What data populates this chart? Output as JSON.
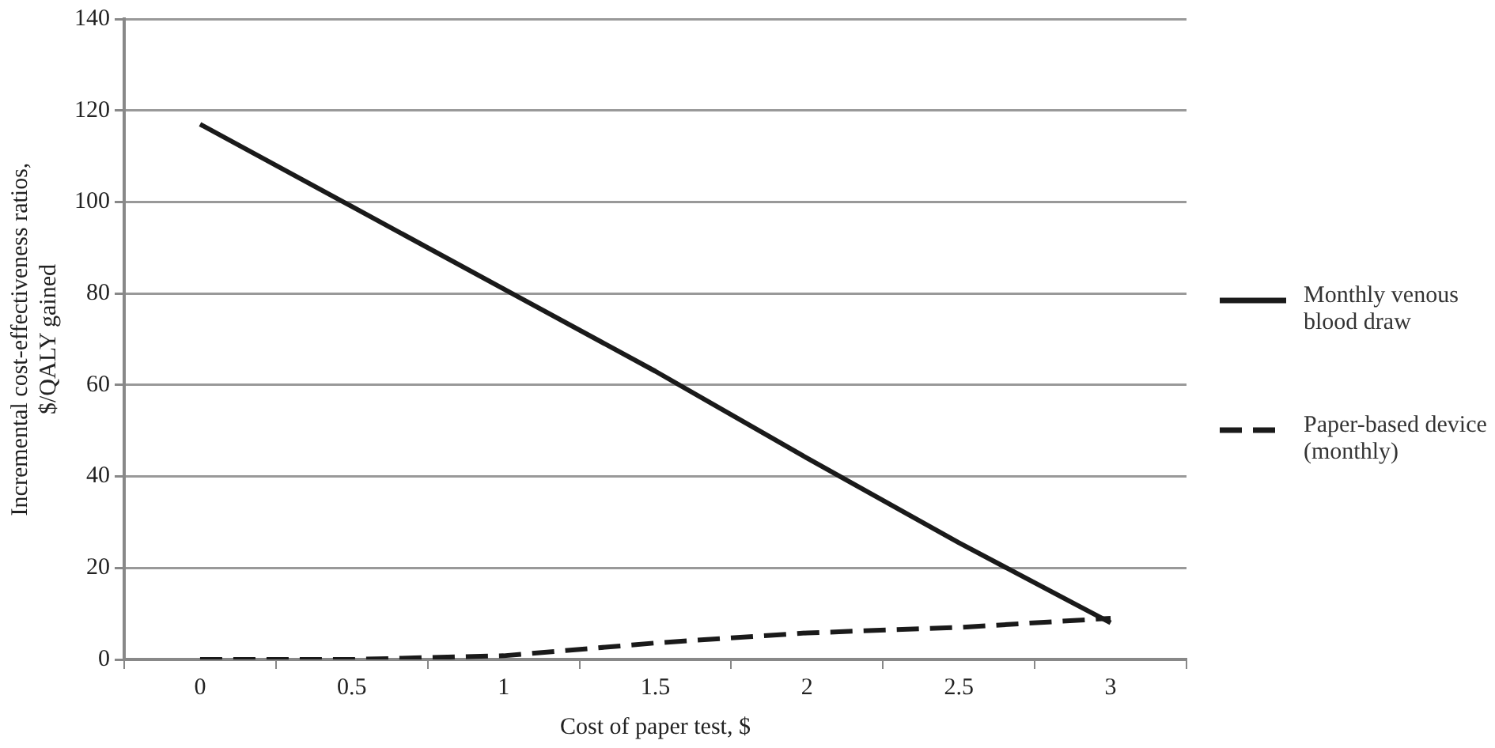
{
  "chart_data": {
    "type": "line",
    "xlabel": "Cost of paper test, $",
    "ylabel": "Incremental cost-effectiveness ratios,\n$/QALY gained",
    "categories": [
      "0",
      "0.5",
      "1",
      "1.5",
      "2",
      "2.5",
      "3"
    ],
    "series": [
      {
        "name": "Monthly venous blood draw",
        "color": "#1a1a1a",
        "line_style": "solid",
        "values": [
          117,
          99,
          81,
          63,
          44,
          25.5,
          8
        ]
      },
      {
        "name": "Paper-based device (monthly)",
        "color": "#1a1a1a",
        "line_style": "dashed",
        "values": [
          0,
          0,
          0.8,
          3.6,
          5.8,
          7,
          9
        ]
      }
    ],
    "ylim": [
      0,
      140
    ],
    "yticks": [
      0,
      20,
      40,
      60,
      80,
      100,
      120,
      140
    ],
    "grid": "y",
    "legend": "right",
    "marker": "none"
  }
}
